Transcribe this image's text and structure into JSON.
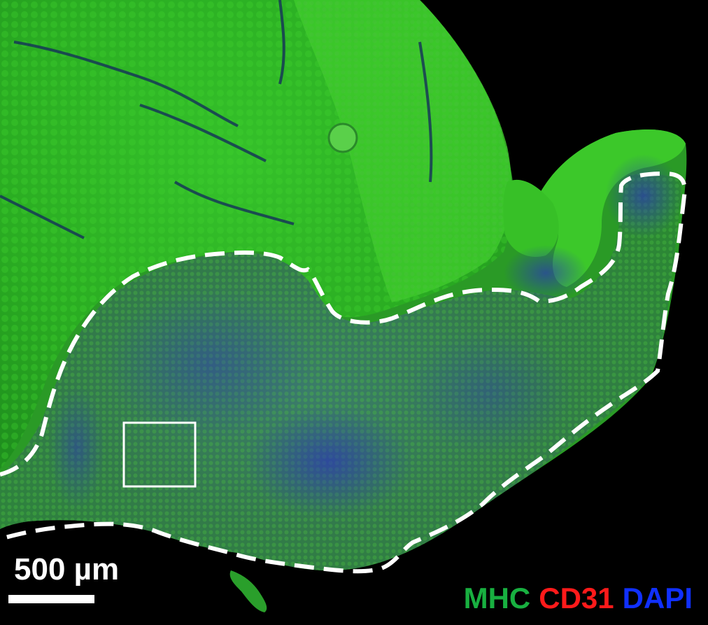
{
  "scale_bar": {
    "label": "500 µm"
  },
  "legend": {
    "items": [
      {
        "label": "MHC",
        "color": "#18b040"
      },
      {
        "label": "CD31",
        "color": "#ff1a1a"
      },
      {
        "label": "DAPI",
        "color": "#1030ff"
      }
    ]
  },
  "colors": {
    "background": "#000000",
    "muscle_green": "#27b51d",
    "injury_region": "#2f7a4a",
    "nuclei_blue": "#1a2a9a",
    "annotation_white": "#ffffff"
  }
}
